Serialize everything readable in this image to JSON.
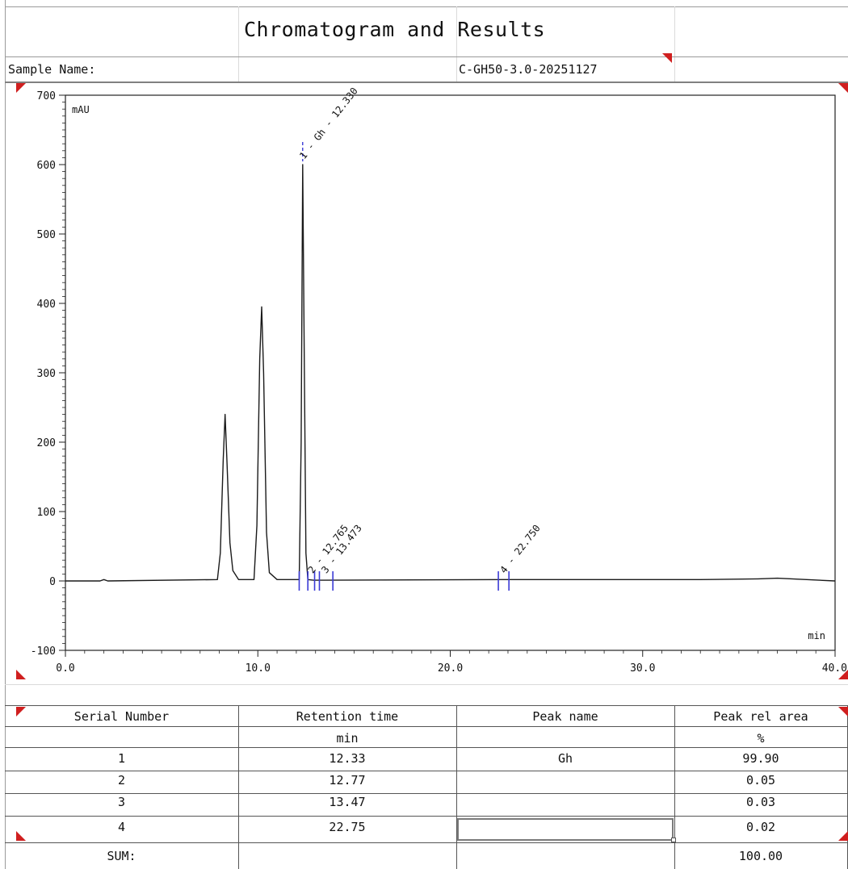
{
  "report": {
    "title": "Chromatogram and Results",
    "sample_name_label": "Sample Name:",
    "sample_name_value": "C-GH50-3.0-20251127"
  },
  "chart_data": {
    "type": "line",
    "y_unit_label": "mAU",
    "x_unit_label": "min",
    "xlim": [
      0,
      40
    ],
    "ylim": [
      -100,
      700
    ],
    "x_ticks": [
      "0.0",
      "10.0",
      "20.0",
      "30.0",
      "40.0"
    ],
    "y_ticks": [
      "700",
      "600",
      "500",
      "400",
      "300",
      "200",
      "100",
      "0",
      "-100"
    ],
    "grid": false,
    "series": [
      {
        "x": [
          0,
          1.8,
          2.0,
          2.2,
          7.9,
          8.05,
          8.2,
          8.3,
          8.4,
          8.55,
          8.7,
          9.0,
          9.8,
          9.95,
          10.1,
          10.2,
          10.3,
          10.45,
          10.6,
          11.0,
          12.15,
          12.25,
          12.33,
          12.42,
          12.5,
          12.6,
          12.9,
          13.5,
          22.75,
          25,
          30,
          33,
          36,
          37,
          40
        ],
        "y": [
          0,
          0,
          2,
          0,
          2,
          40,
          175,
          240,
          170,
          55,
          15,
          2,
          2,
          80,
          320,
          395,
          300,
          70,
          12,
          2,
          2,
          200,
          600,
          300,
          40,
          2,
          1,
          1,
          2,
          2,
          2,
          2,
          3,
          4,
          0
        ]
      }
    ],
    "peak_labels": [
      {
        "text": "1 - Gh - 12.330",
        "x": 12.33,
        "y": 600
      },
      {
        "text": "2 - 12.765",
        "x": 12.77,
        "y": 3
      },
      {
        "text": "3 - 13.473",
        "x": 13.47,
        "y": 3
      },
      {
        "text": "4 - 22.750",
        "x": 22.75,
        "y": 3
      }
    ],
    "integration_marks_x": [
      12.15,
      12.6,
      12.95,
      13.2,
      13.9,
      22.5,
      23.05
    ]
  },
  "table": {
    "headers": [
      "Serial Number",
      "Retention time",
      "Peak name",
      "Peak rel area"
    ],
    "units": [
      "",
      "min",
      "",
      "%"
    ],
    "rows": [
      [
        "1",
        "12.33",
        "Gh",
        "99.90"
      ],
      [
        "2",
        "12.77",
        "",
        "0.05"
      ],
      [
        "3",
        "13.47",
        "",
        "0.03"
      ],
      [
        "4",
        "22.75",
        "",
        "0.02"
      ]
    ],
    "sum_label": "SUM:",
    "sum_value": "100.00"
  },
  "colors": {
    "trace": "#1a1a1a",
    "marker_blue": "#3b3bd6",
    "marker_red": "#d01f1f",
    "grid_line": "#9a9a9a"
  }
}
